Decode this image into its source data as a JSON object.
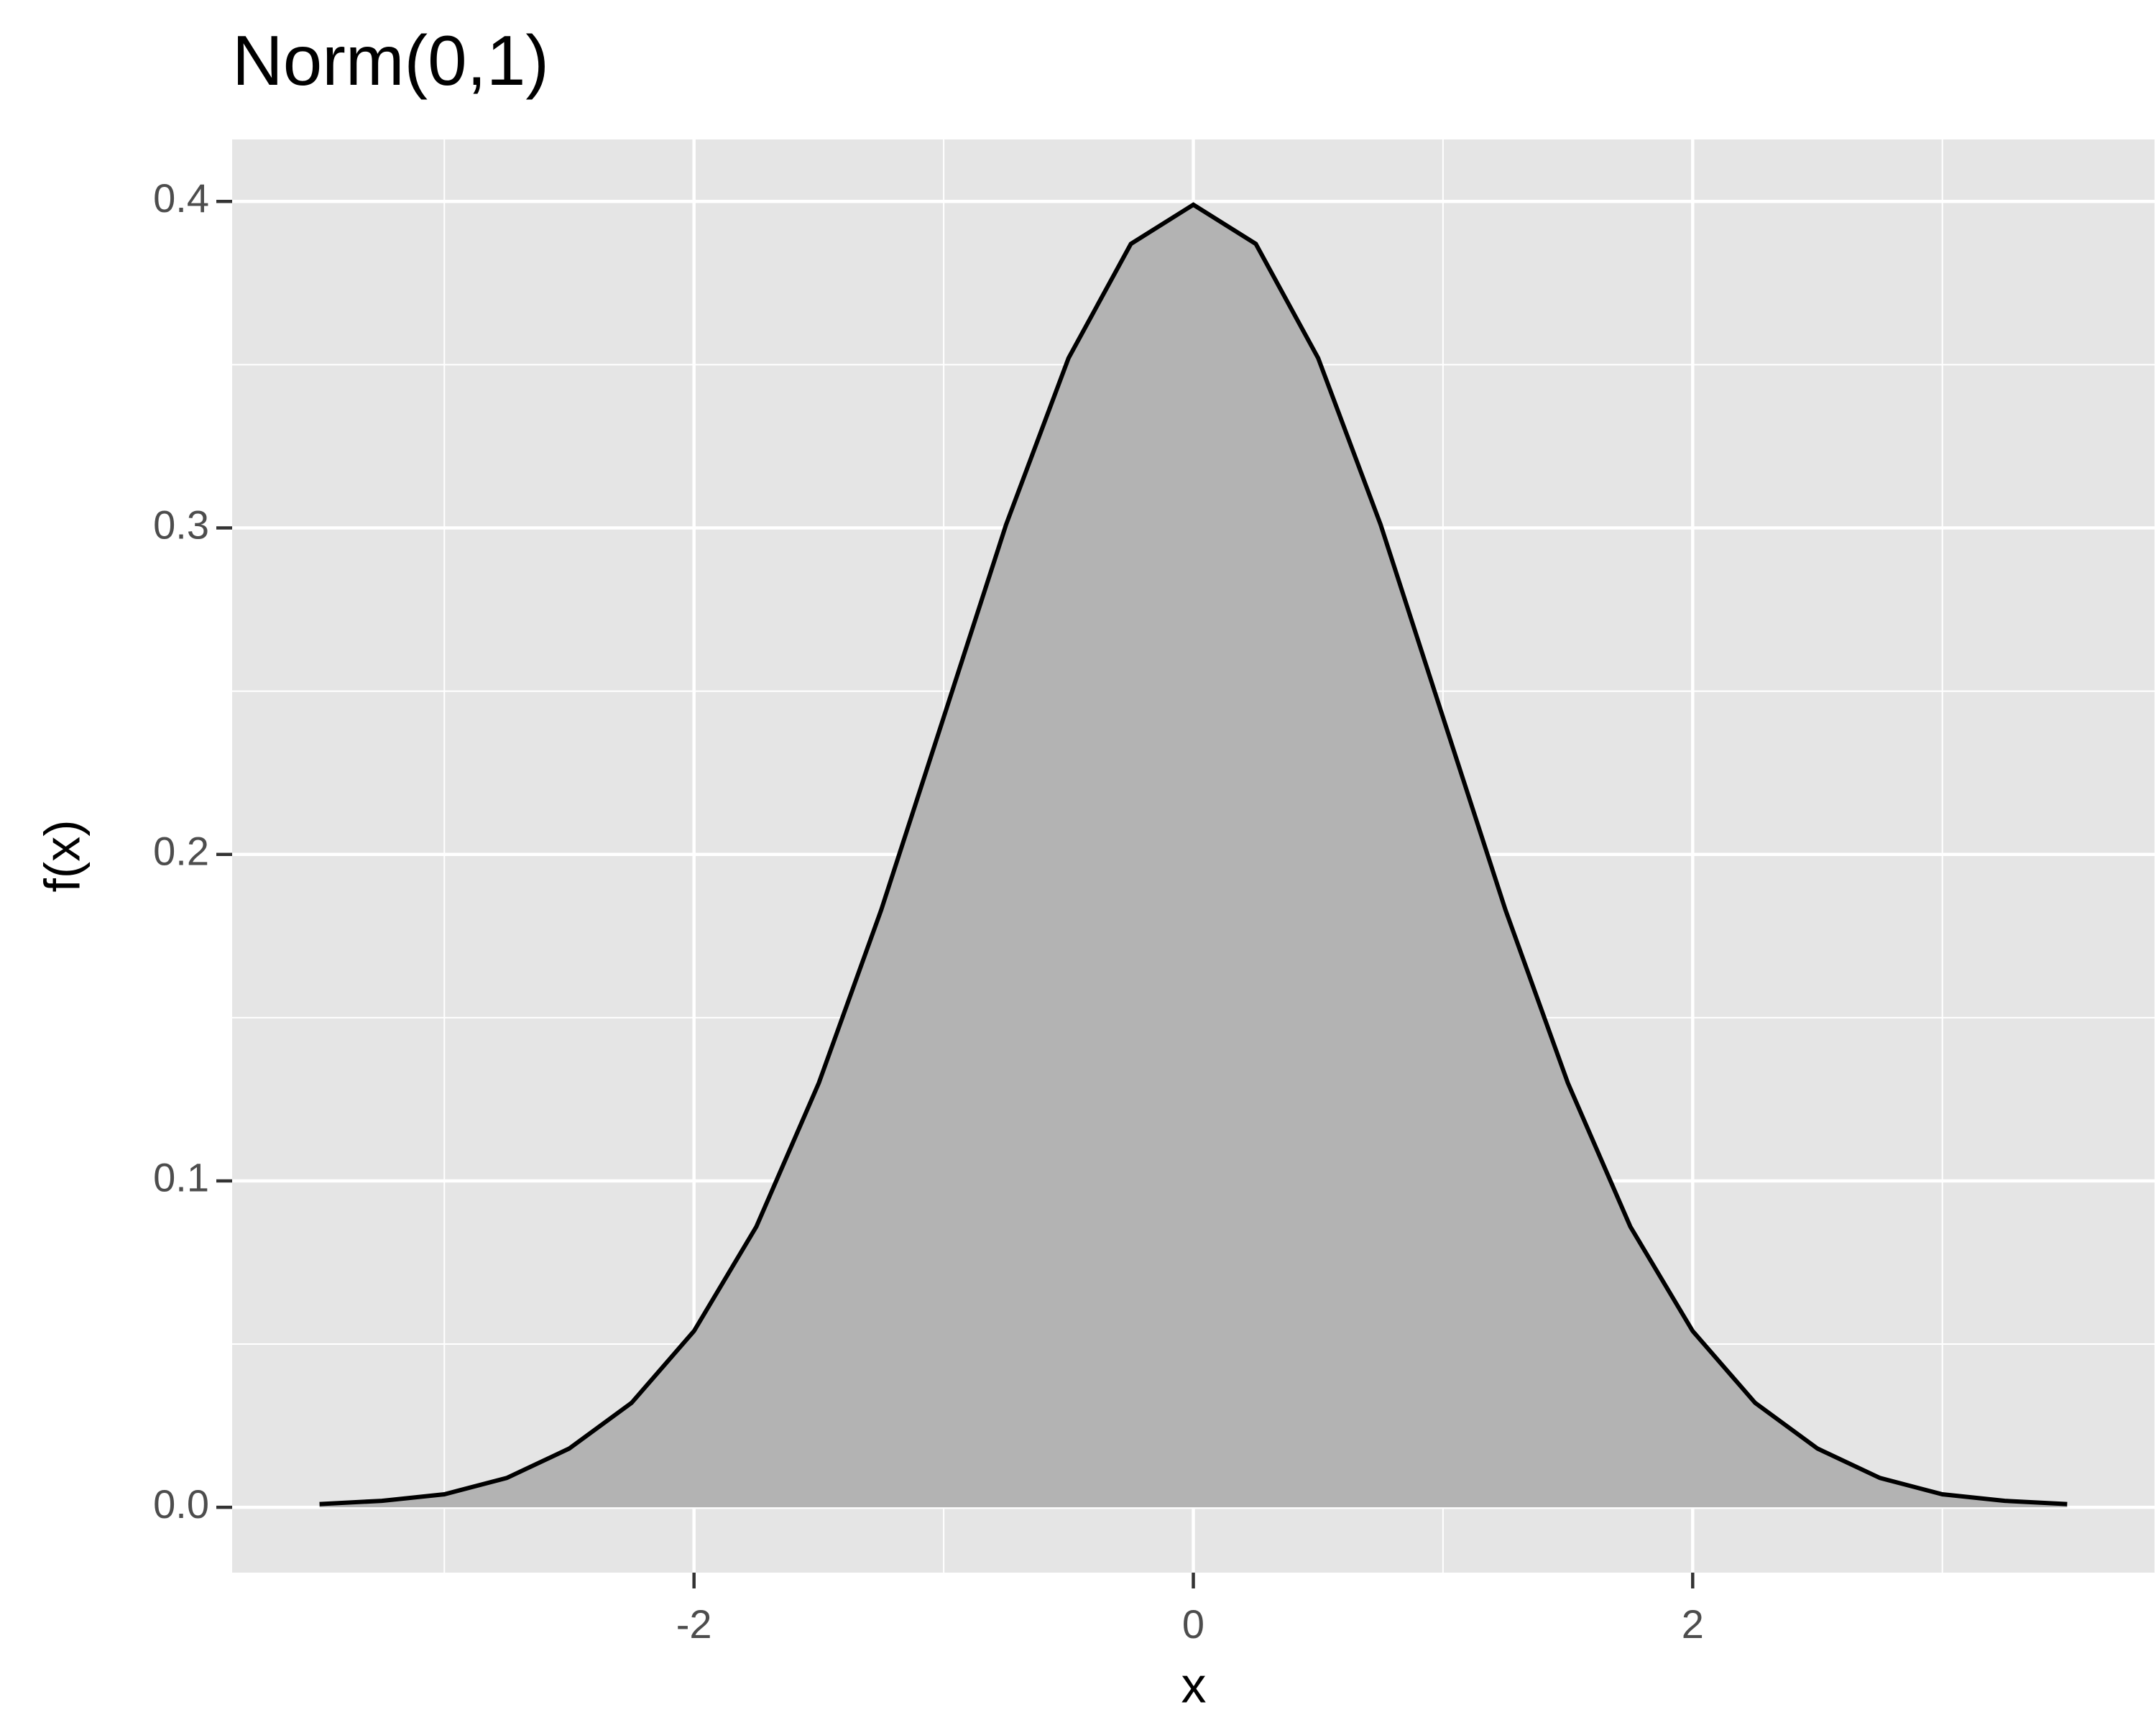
{
  "chart_data": {
    "type": "area",
    "title": "Norm(0,1)",
    "x_label": "x",
    "y_label": "f(x)",
    "x": [
      -3.5,
      -3.25,
      -3,
      -2.75,
      -2.5,
      -2.25,
      -2,
      -1.75,
      -1.5,
      -1.25,
      -1,
      -0.75,
      -0.5,
      -0.25,
      0,
      0.25,
      0.5,
      0.75,
      1,
      1.25,
      1.5,
      1.75,
      2,
      2.25,
      2.5,
      2.75,
      3,
      3.25,
      3.5
    ],
    "values": [
      0.001,
      0.002,
      0.004,
      0.009,
      0.018,
      0.032,
      0.054,
      0.086,
      0.13,
      0.183,
      0.242,
      0.301,
      0.352,
      0.387,
      0.399,
      0.387,
      0.352,
      0.301,
      0.242,
      0.183,
      0.13,
      0.086,
      0.054,
      0.032,
      0.018,
      0.009,
      0.004,
      0.002,
      0.001
    ],
    "fill": "#b3b3b3",
    "line_color": "#000000",
    "panel_color": "#e5e5e5",
    "xlim": [
      -3.85,
      3.85
    ],
    "ylim": [
      -0.02,
      0.419
    ],
    "xticks": [
      -2,
      0,
      2
    ],
    "yticks": [
      {
        "value": 0,
        "label": "0.0"
      },
      0.1,
      0.2,
      0.3,
      0.4
    ],
    "xminor": [
      -3,
      -1,
      1,
      3
    ],
    "yminor": [
      0.05,
      0.15,
      0.25,
      0.35
    ],
    "grid": true
  }
}
